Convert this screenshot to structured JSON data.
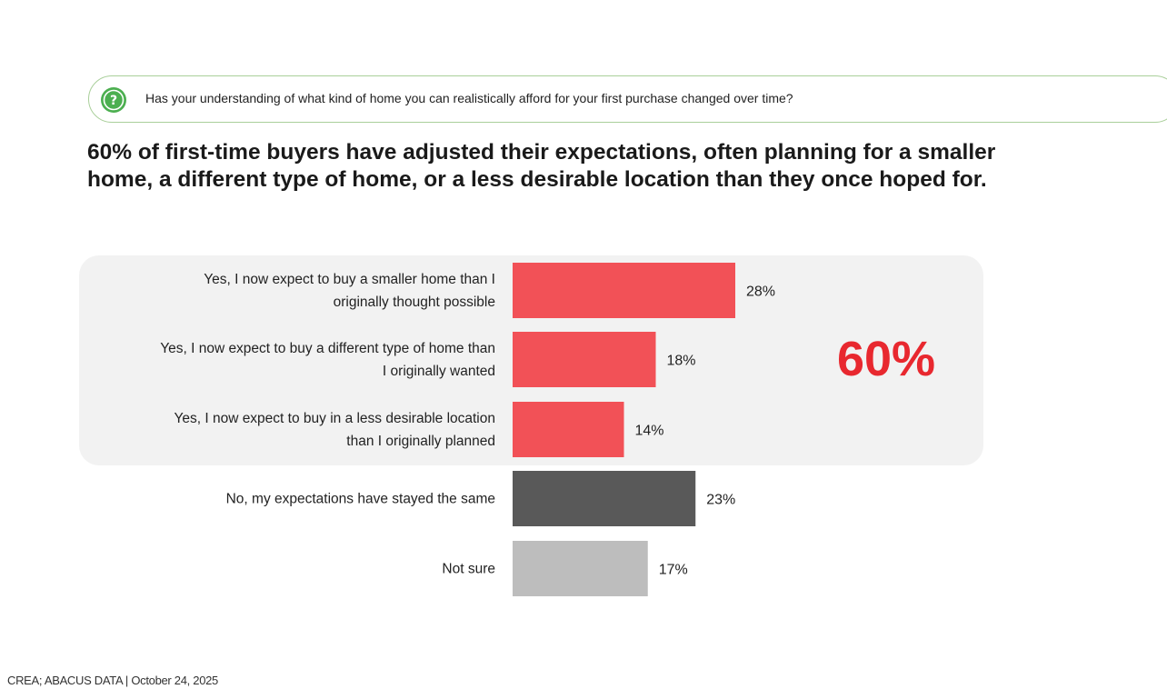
{
  "question": {
    "text": "Has your understanding of what kind of home you can realistically afford for your first purchase changed over time?"
  },
  "headline": {
    "line1": "60% of first-time buyers have adjusted their expectations, often planning for a smaller",
    "line2": "home, a different type of home, or a less desirable location than they once hoped for."
  },
  "colors": {
    "yes": "#f25157",
    "no": "#595959",
    "not_sure": "#bdbdbd",
    "highlight_panel": "#f2f2f2",
    "total_label": "#e8282f",
    "question_icon": "#4caf50",
    "question_border": "#a9cf9a"
  },
  "chart_data": {
    "type": "bar",
    "orientation": "horizontal",
    "categories": [
      [
        "Yes, I now expect to buy a smaller home than I",
        "originally thought possible"
      ],
      [
        "Yes, I now expect to buy a different type of home than",
        "I originally wanted"
      ],
      [
        "Yes, I now expect to buy in a less desirable location",
        "than I originally planned"
      ],
      [
        "No, my expectations have stayed the same"
      ],
      [
        "Not sure"
      ]
    ],
    "values": [
      28,
      18,
      14,
      23,
      17
    ],
    "value_labels": [
      "28%",
      "18%",
      "14%",
      "23%",
      "17%"
    ],
    "bar_colors": [
      "#f25157",
      "#f25157",
      "#f25157",
      "#595959",
      "#bdbdbd"
    ],
    "group_total": {
      "label": "60%",
      "applies_to": [
        0,
        1,
        2
      ]
    },
    "xlim": [
      0,
      100
    ],
    "grid": false,
    "legend": "none",
    "title": "",
    "xlabel": "",
    "ylabel": ""
  },
  "footer": {
    "source": "CREA; ABACUS DATA  |  October 24, 2025"
  }
}
